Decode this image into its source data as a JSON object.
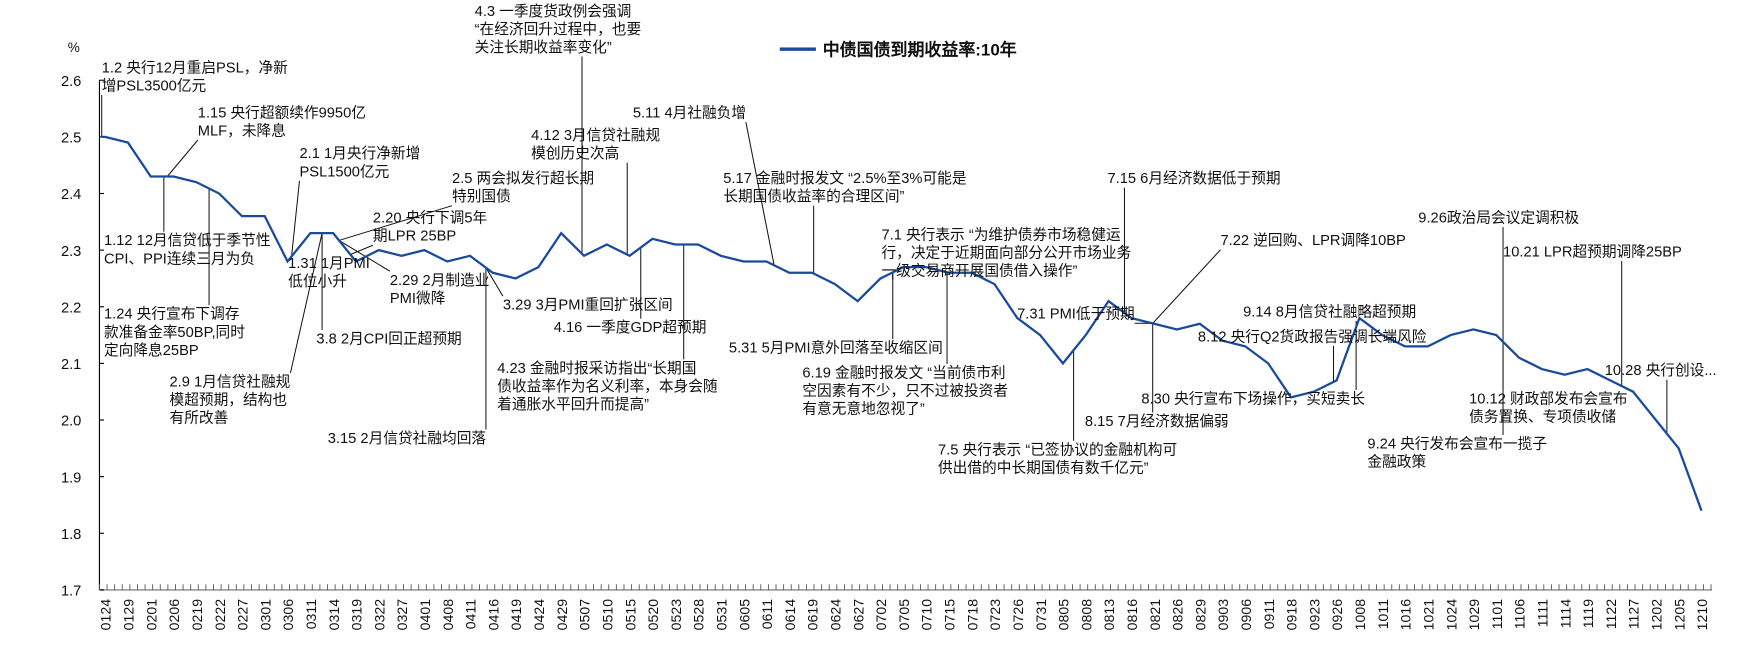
{
  "chart_data": {
    "type": "line",
    "title": "",
    "xlabel": "",
    "ylabel": "%",
    "ylim": [
      1.7,
      2.6
    ],
    "yticks": [
      "2.6",
      "2.5",
      "2.4",
      "2.3",
      "2.2",
      "2.1",
      "2.0",
      "1.9",
      "1.8",
      "1.7"
    ],
    "grid": false,
    "legend_position": "top-center",
    "categories": [
      "0124",
      "0129",
      "0201",
      "0206",
      "0219",
      "0222",
      "0227",
      "0301",
      "0306",
      "0311",
      "0314",
      "0319",
      "0322",
      "0327",
      "0401",
      "0408",
      "0411",
      "0416",
      "0419",
      "0424",
      "0429",
      "0507",
      "0510",
      "0515",
      "0520",
      "0523",
      "0528",
      "0531",
      "0605",
      "0611",
      "0614",
      "0619",
      "0624",
      "0627",
      "0702",
      "0705",
      "0710",
      "0715",
      "0718",
      "0723",
      "0726",
      "0731",
      "0805",
      "0808",
      "0813",
      "0816",
      "0821",
      "0826",
      "0829",
      "0903",
      "0906",
      "0911",
      "0918",
      "0923",
      "0926",
      "1008",
      "1011",
      "1016",
      "1021",
      "1024",
      "1029",
      "1101",
      "1106",
      "1111",
      "1114",
      "1119",
      "1122",
      "1127",
      "1202",
      "1205",
      "1210"
    ],
    "series": [
      {
        "name": "中债国债到期收益率:10年",
        "color": "#1a4a9c",
        "values": [
          2.5,
          2.49,
          2.43,
          2.43,
          2.42,
          2.4,
          2.36,
          2.36,
          2.28,
          2.33,
          2.33,
          2.28,
          2.3,
          2.29,
          2.3,
          2.28,
          2.29,
          2.26,
          2.25,
          2.27,
          2.33,
          2.29,
          2.31,
          2.29,
          2.32,
          2.31,
          2.31,
          2.29,
          2.28,
          2.28,
          2.26,
          2.26,
          2.24,
          2.21,
          2.25,
          2.27,
          2.27,
          2.26,
          2.26,
          2.24,
          2.18,
          2.15,
          2.1,
          2.15,
          2.21,
          2.18,
          2.17,
          2.16,
          2.17,
          2.14,
          2.13,
          2.1,
          2.04,
          2.05,
          2.07,
          2.18,
          2.15,
          2.13,
          2.13,
          2.15,
          2.16,
          2.15,
          2.11,
          2.09,
          2.08,
          2.09,
          2.07,
          2.05,
          2.0,
          1.95,
          1.84
        ]
      }
    ],
    "annotations": [
      {
        "lines": [
          "1.2 央行12月重启PSL，净新",
          "增PSL3500亿元"
        ]
      },
      {
        "lines": [
          "1.15 央行超额续作9950亿",
          "MLF，未降息"
        ]
      },
      {
        "lines": [
          "2.1 1月央行净新增",
          "PSL1500亿元"
        ]
      },
      {
        "lines": [
          "2.5 两会拟发行超长期",
          "特别国债"
        ]
      },
      {
        "lines": [
          "2.20 央行下调5年",
          "期LPR 25BP"
        ]
      },
      {
        "lines": [
          "4.3 一季度货政例会强调",
          "“在经济回升过程中，也要",
          "关注长期收益率变化”"
        ]
      },
      {
        "lines": [
          "4.12 3月信贷社融规",
          "模创历史次高"
        ]
      },
      {
        "lines": [
          "5.11 4月社融负增"
        ]
      },
      {
        "lines": [
          "5.17 金融时报发文 “2.5%至3%可能是",
          "长期国债收益率的合理区间”"
        ]
      },
      {
        "lines": [
          "7.15 6月经济数据低于预期"
        ]
      },
      {
        "lines": [
          "7.1 央行表示 “为维护债券市场稳健运",
          "行，决定于近期面向部分公开市场业务",
          "一级交易商开展国债借入操作”"
        ]
      },
      {
        "lines": [
          "7.22 逆回购、LPR调降10BP"
        ]
      },
      {
        "lines": [
          "9.26政治局会议定调积极"
        ]
      },
      {
        "lines": [
          "10.21 LPR超预期调降25BP"
        ]
      },
      {
        "lines": [
          "1.12 12月信贷低于季节性",
          "CPI、PPI连续三月为负"
        ]
      },
      {
        "lines": [
          "1.31 1月PMI",
          "低位小升"
        ]
      },
      {
        "lines": [
          "2.29 2月制造业",
          "PMI微降"
        ]
      },
      {
        "lines": [
          "3.8 2月CPI回正超预期"
        ]
      },
      {
        "lines": [
          "1.24 央行宣布下调存",
          "款准备金率50BP,同时",
          "定向降息25BP"
        ]
      },
      {
        "lines": [
          "2.9 1月信贷社融规",
          "模超预期，结构也",
          "有所改善"
        ]
      },
      {
        "lines": [
          "3.29 3月PMI重回扩张区间"
        ]
      },
      {
        "lines": [
          "4.16 一季度GDP超预期"
        ]
      },
      {
        "lines": [
          "4.23 金融时报采访指出“长期国",
          "债收益率作为名义利率，本身会随",
          "着通胀水平回升而提高”"
        ]
      },
      {
        "lines": [
          "5.31 5月PMI意外回落至收缩区间"
        ]
      },
      {
        "lines": [
          "6.19 金融时报发文 “当前债市利",
          "空因素有不少，只不过被投资者",
          "有意无意地忽视了”"
        ]
      },
      {
        "lines": [
          "3.15 2月信贷社融均回落"
        ]
      },
      {
        "lines": [
          "7.31 PMI低于预期"
        ]
      },
      {
        "lines": [
          "7.5 央行表示 “已签协议的金融机构可",
          "供出借的中长期国债有数千亿元”"
        ]
      },
      {
        "lines": [
          "9.14 8月信贷社融略超预期"
        ]
      },
      {
        "lines": [
          "8.12 央行Q2货政报告强调长端风险"
        ]
      },
      {
        "lines": [
          "8.30 央行宣布下场操作，买短卖长"
        ]
      },
      {
        "lines": [
          "8.15 7月经济数据偏弱"
        ]
      },
      {
        "lines": [
          "10.12 财政部发布会宣布",
          "债务置换、专项债收储"
        ]
      },
      {
        "lines": [
          "9.24 央行发布会宣布一揽子",
          "金融政策"
        ]
      },
      {
        "lines": [
          "10.28 央行创设..."
        ]
      }
    ]
  }
}
